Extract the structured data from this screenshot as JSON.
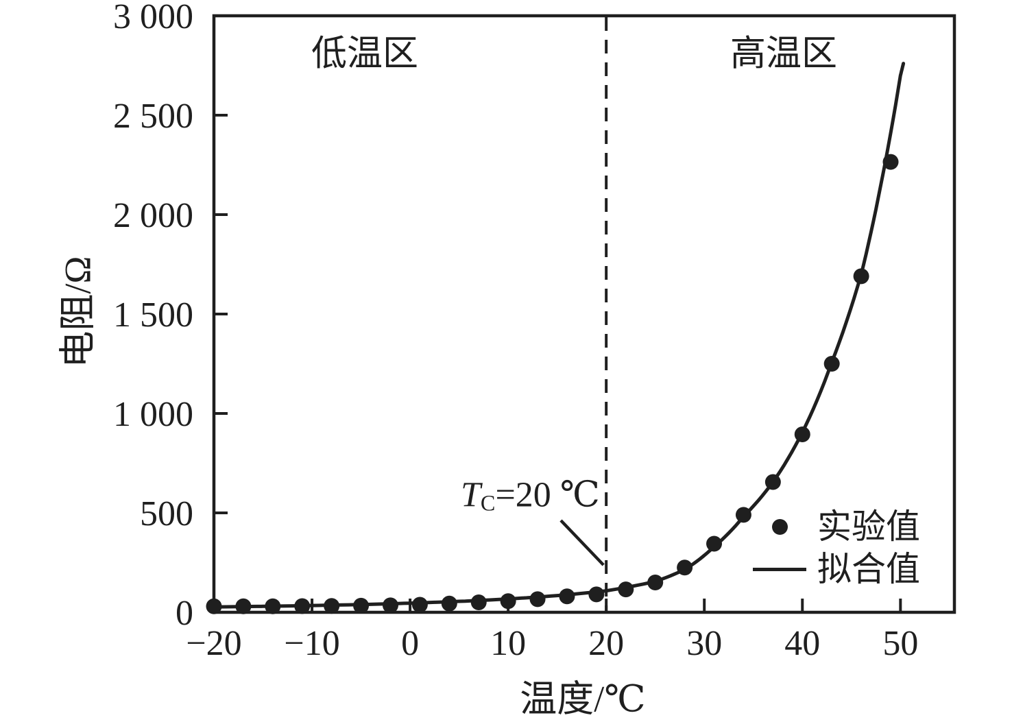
{
  "colors": {
    "ink": "#1f1f1f",
    "background": "#ffffff"
  },
  "chart_data": {
    "type": "scatter",
    "title": "",
    "xlabel": "温度/℃",
    "ylabel": "电阻/Ω",
    "xlim": [
      -20,
      55.5
    ],
    "ylim": [
      0,
      3000
    ],
    "grid": false,
    "x_ticks": [
      -20,
      -10,
      0,
      10,
      20,
      30,
      40,
      50
    ],
    "x_tick_labels": [
      "−20",
      "−10",
      "0",
      "10",
      "20",
      "30",
      "40",
      "50"
    ],
    "y_ticks": [
      0,
      500,
      1000,
      1500,
      2000,
      2500,
      3000
    ],
    "y_tick_labels": [
      "0",
      "500",
      "1 000",
      "1 500",
      "2 000",
      "2 500",
      "3 000"
    ],
    "regions": [
      {
        "label": "低温区",
        "range": [
          -20,
          20
        ]
      },
      {
        "label": "高温区",
        "range": [
          20,
          55.5
        ]
      }
    ],
    "curie_annotation": {
      "text_var": "T",
      "text_sub": "C",
      "text_rest": "=20 ℃",
      "x": 20,
      "line_style": "dashed"
    },
    "legend_position": "inside lower right",
    "series": [
      {
        "name": "实验值",
        "style": "points",
        "x": [
          -20,
          -17,
          -14,
          -11,
          -8,
          -5,
          -2,
          1,
          4,
          7,
          10,
          13,
          16,
          19,
          22,
          25,
          28,
          31,
          34,
          37,
          40,
          43,
          46,
          49
        ],
        "y": [
          30,
          30,
          30,
          31,
          32,
          33,
          35,
          38,
          44,
          50,
          56,
          66,
          80,
          90,
          115,
          150,
          225,
          345,
          490,
          655,
          895,
          1250,
          1690,
          2265
        ]
      },
      {
        "name": "拟合值",
        "style": "line",
        "x": [
          -20,
          -15,
          -10,
          -5,
          0,
          5,
          10,
          15,
          20,
          25,
          28,
          31,
          34,
          37,
          40,
          43,
          46,
          48,
          50,
          50.3
        ],
        "y": [
          27,
          30,
          34,
          39,
          46,
          55,
          67,
          84,
          108,
          155,
          215,
          330,
          482,
          655,
          905,
          1258,
          1700,
          2150,
          2700,
          2760
        ]
      }
    ]
  }
}
